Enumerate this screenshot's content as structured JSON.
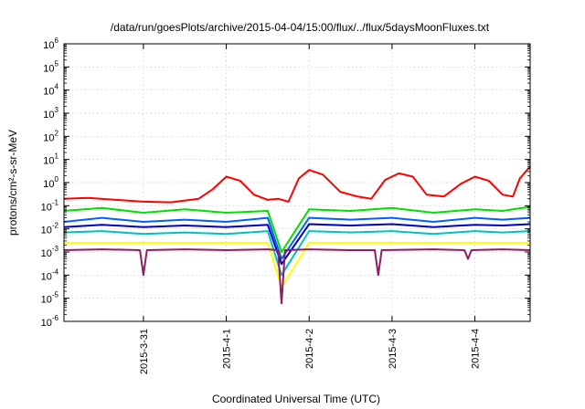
{
  "chart_data": {
    "type": "line",
    "title": "/data/run/goesPlots/archive/2015-04-04/15:00/flux/../flux/5daysMoonFluxes.txt",
    "xlabel": "Coordinated Universal Time (UTC)",
    "ylabel": "protons/cm²-s-sr-MeV",
    "yscale": "log",
    "ylim": [
      1e-06,
      1000000.0
    ],
    "xlim": [
      "2015-03-30T01:00",
      "2015-04-04T16:00"
    ],
    "yticks": [
      {
        "base": "10",
        "exp": "-6"
      },
      {
        "base": "10",
        "exp": "-5"
      },
      {
        "base": "10",
        "exp": "-4"
      },
      {
        "base": "10",
        "exp": "-3"
      },
      {
        "base": "10",
        "exp": "-2"
      },
      {
        "base": "10",
        "exp": "-1"
      },
      {
        "base": "10",
        "exp": "0"
      },
      {
        "base": "10",
        "exp": "1"
      },
      {
        "base": "10",
        "exp": "2"
      },
      {
        "base": "10",
        "exp": "3"
      },
      {
        "base": "10",
        "exp": "4"
      },
      {
        "base": "10",
        "exp": "5"
      },
      {
        "base": "10",
        "exp": "6"
      }
    ],
    "xticks": [
      {
        "label": "2015-3-31",
        "x": "2015-03-31T00:00"
      },
      {
        "label": "2015-4-1",
        "x": "2015-04-01T00:00"
      },
      {
        "label": "2015-4-2",
        "x": "2015-04-02T00:00"
      },
      {
        "label": "2015-4-3",
        "x": "2015-04-03T00:00"
      },
      {
        "label": "2015-4-4",
        "x": "2015-04-04T00:00"
      }
    ],
    "grid": true,
    "series": [
      {
        "color": "#ff0000",
        "x": [
          "2015-03-30T01:00",
          "2015-03-30T08:00",
          "2015-03-30T16:00",
          "2015-03-31T00:00",
          "2015-03-31T08:00",
          "2015-03-31T16:00",
          "2015-03-31T20:00",
          "2015-04-01T00:00",
          "2015-04-01T04:00",
          "2015-04-01T08:00",
          "2015-04-01T12:00",
          "2015-04-01T15:00",
          "2015-04-01T18:00",
          "2015-04-01T21:00",
          "2015-04-02T00:00",
          "2015-04-02T04:00",
          "2015-04-02T09:00",
          "2015-04-02T14:00",
          "2015-04-02T18:00",
          "2015-04-02T22:00",
          "2015-04-03T02:00",
          "2015-04-03T06:00",
          "2015-04-03T10:00",
          "2015-04-03T15:00",
          "2015-04-03T20:00",
          "2015-04-04T00:00",
          "2015-04-04T04:00",
          "2015-04-04T08:00",
          "2015-04-04T11:00",
          "2015-04-04T13:00",
          "2015-04-04T16:00"
        ],
        "y": [
          0.2,
          0.22,
          0.18,
          0.15,
          0.14,
          0.2,
          0.5,
          1.8,
          1.2,
          0.3,
          0.18,
          0.2,
          0.15,
          1.5,
          3.5,
          2.2,
          0.4,
          0.25,
          0.2,
          1.3,
          2.5,
          1.8,
          0.3,
          0.25,
          0.9,
          1.8,
          1.2,
          0.3,
          0.25,
          1.5,
          5
        ]
      },
      {
        "color": "#00e000",
        "x": [
          "2015-03-30T01:00",
          "2015-03-30T12:00",
          "2015-03-31T00:00",
          "2015-03-31T12:00",
          "2015-04-01T00:00",
          "2015-04-01T12:00",
          "2015-04-01T16:00",
          "2015-04-02T00:00",
          "2015-04-02T12:00",
          "2015-04-03T00:00",
          "2015-04-03T12:00",
          "2015-04-04T00:00",
          "2015-04-04T08:00",
          "2015-04-04T16:00"
        ],
        "y": [
          0.06,
          0.08,
          0.05,
          0.07,
          0.05,
          0.06,
          0.001,
          0.07,
          0.06,
          0.08,
          0.05,
          0.07,
          0.06,
          0.09
        ]
      },
      {
        "color": "#0060ff",
        "x": [
          "2015-03-30T01:00",
          "2015-03-30T12:00",
          "2015-03-31T00:00",
          "2015-03-31T12:00",
          "2015-04-01T00:00",
          "2015-04-01T12:00",
          "2015-04-01T16:00",
          "2015-04-02T00:00",
          "2015-04-02T12:00",
          "2015-04-03T00:00",
          "2015-04-03T12:00",
          "2015-04-04T00:00",
          "2015-04-04T08:00",
          "2015-04-04T16:00"
        ],
        "y": [
          0.02,
          0.03,
          0.02,
          0.025,
          0.02,
          0.03,
          0.0005,
          0.03,
          0.025,
          0.03,
          0.02,
          0.03,
          0.025,
          0.03
        ]
      },
      {
        "color": "#0000c0",
        "x": [
          "2015-03-30T01:00",
          "2015-03-30T12:00",
          "2015-03-31T00:00",
          "2015-03-31T12:00",
          "2015-04-01T00:00",
          "2015-04-01T12:00",
          "2015-04-01T16:00",
          "2015-04-02T00:00",
          "2015-04-02T12:00",
          "2015-04-03T00:00",
          "2015-04-03T12:00",
          "2015-04-04T00:00",
          "2015-04-04T08:00",
          "2015-04-04T16:00"
        ],
        "y": [
          0.012,
          0.015,
          0.012,
          0.014,
          0.012,
          0.015,
          0.0003,
          0.016,
          0.014,
          0.016,
          0.012,
          0.015,
          0.014,
          0.016
        ]
      },
      {
        "color": "#00c0c0",
        "x": [
          "2015-03-30T01:00",
          "2015-03-30T12:00",
          "2015-03-31T00:00",
          "2015-03-31T12:00",
          "2015-04-01T00:00",
          "2015-04-01T12:00",
          "2015-04-01T16:00",
          "2015-04-02T00:00",
          "2015-04-02T12:00",
          "2015-04-03T00:00",
          "2015-04-03T12:00",
          "2015-04-04T00:00",
          "2015-04-04T08:00",
          "2015-04-04T16:00"
        ],
        "y": [
          0.007,
          0.008,
          0.006,
          0.007,
          0.006,
          0.008,
          0.0001,
          0.008,
          0.007,
          0.008,
          0.006,
          0.008,
          0.007,
          0.008
        ]
      },
      {
        "color": "#ffff00",
        "x": [
          "2015-03-30T01:00",
          "2015-03-30T12:00",
          "2015-03-31T00:00",
          "2015-03-31T12:00",
          "2015-04-01T00:00",
          "2015-04-01T12:00",
          "2015-04-01T16:00",
          "2015-04-02T00:00",
          "2015-04-02T12:00",
          "2015-04-03T00:00",
          "2015-04-03T12:00",
          "2015-04-04T00:00",
          "2015-04-04T08:00",
          "2015-04-04T16:00"
        ],
        "y": [
          0.0025,
          0.0025,
          0.0025,
          0.0025,
          0.0025,
          0.0025,
          3e-05,
          0.0025,
          0.0025,
          0.0025,
          0.0025,
          0.0025,
          0.0025,
          0.0025
        ]
      },
      {
        "color": "#8b2060",
        "x": [
          "2015-03-30T01:00",
          "2015-03-30T12:00",
          "2015-03-30T23:00",
          "2015-03-31T00:00",
          "2015-03-31T01:00",
          "2015-03-31T12:00",
          "2015-04-01T00:00",
          "2015-04-01T12:00",
          "2015-04-01T15:00",
          "2015-04-01T16:00",
          "2015-04-01T17:00",
          "2015-04-02T00:00",
          "2015-04-02T12:00",
          "2015-04-02T19:00",
          "2015-04-02T20:00",
          "2015-04-02T21:00",
          "2015-04-03T12:00",
          "2015-04-03T21:00",
          "2015-04-03T22:00",
          "2015-04-03T23:00",
          "2015-04-04T08:00",
          "2015-04-04T16:00"
        ],
        "y": [
          0.0012,
          0.0013,
          0.0012,
          0.0001,
          0.0012,
          0.0013,
          0.0012,
          0.0013,
          0.0012,
          6e-06,
          0.0012,
          0.0013,
          0.0012,
          0.0012,
          0.0001,
          0.0012,
          0.0013,
          0.0012,
          0.0005,
          0.0012,
          0.0013,
          0.0012
        ]
      }
    ]
  }
}
